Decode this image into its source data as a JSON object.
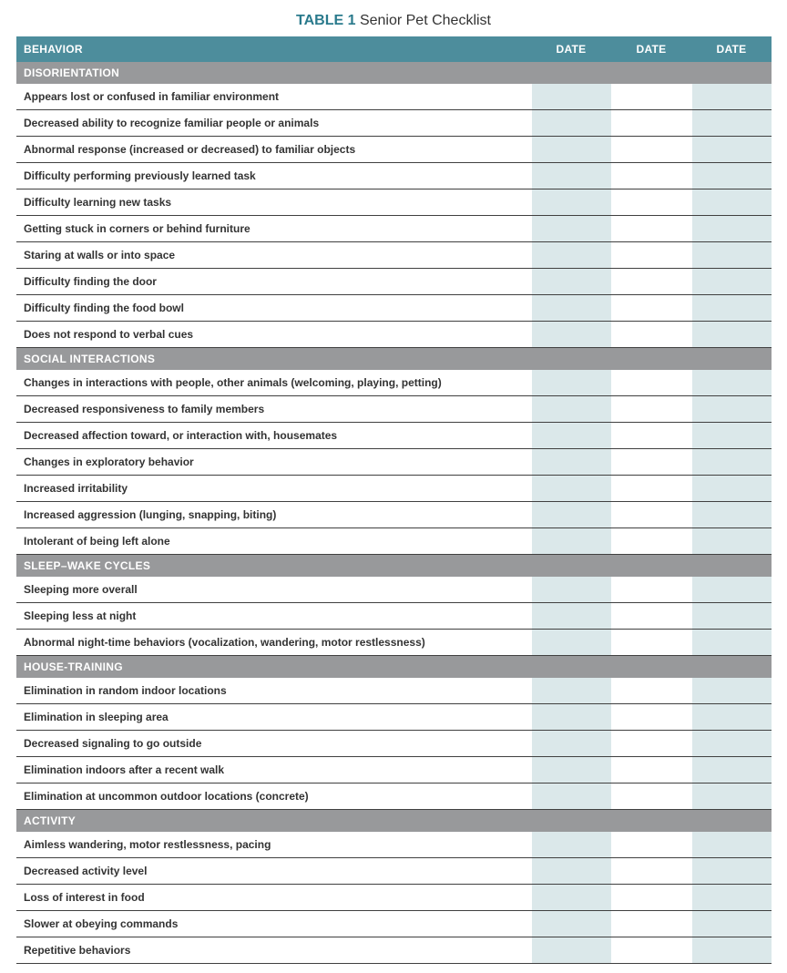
{
  "title_prefix": "TABLE 1",
  "title_text": "Senior Pet Checklist",
  "colors": {
    "header_bg": "#4d8d9c",
    "section_bg": "#98999b",
    "shaded_cell": "#dbe8ea",
    "row_border": "#404040",
    "title_accent": "#2a7a8c",
    "text": "#333333",
    "white": "#ffffff"
  },
  "columns": {
    "behavior": "BEHAVIOR",
    "date1": "DATE",
    "date2": "DATE",
    "date3": "DATE"
  },
  "sections": [
    {
      "name": "DISORIENTATION",
      "items": [
        "Appears lost or confused in familiar environment",
        "Decreased ability to recognize familiar people or animals",
        "Abnormal response (increased or decreased) to familiar objects",
        "Difficulty performing previously learned task",
        "Difficulty learning new tasks",
        "Getting stuck in corners or behind furniture",
        "Staring at walls or into space",
        "Difficulty finding the door",
        "Difficulty finding the food bowl",
        "Does not respond to verbal cues"
      ]
    },
    {
      "name": "SOCIAL INTERACTIONS",
      "items": [
        "Changes in interactions with people, other animals (welcoming, playing, petting)",
        "Decreased responsiveness to family members",
        "Decreased affection toward, or interaction with, housemates",
        "Changes in exploratory behavior",
        "Increased irritability",
        "Increased aggression (lunging, snapping, biting)",
        "Intolerant of being left alone"
      ]
    },
    {
      "name": "SLEEP–WAKE CYCLES",
      "items": [
        "Sleeping more overall",
        "Sleeping less at night",
        "Abnormal night-time behaviors (vocalization, wandering, motor restlessness)"
      ]
    },
    {
      "name": "HOUSE-TRAINING",
      "items": [
        "Elimination in random indoor locations",
        "Elimination in sleeping area",
        "Decreased signaling to go outside",
        "Elimination indoors after a recent walk",
        "Elimination at uncommon outdoor locations (concrete)"
      ]
    },
    {
      "name": "ACTIVITY",
      "items": [
        "Aimless wandering, motor restlessness, pacing",
        "Decreased activity level",
        "Loss of interest in food",
        "Slower at obeying commands",
        "Repetitive behaviors"
      ]
    }
  ]
}
